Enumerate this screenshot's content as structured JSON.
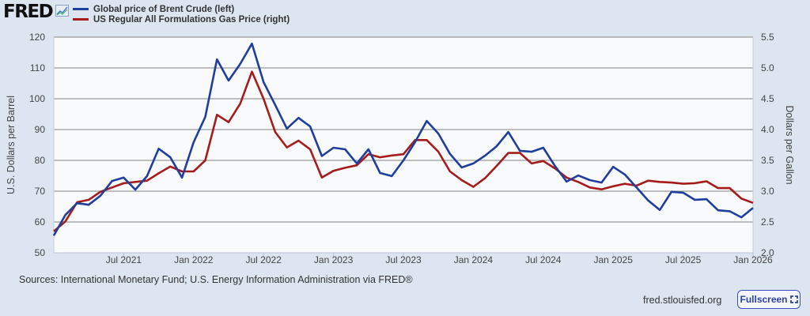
{
  "header": {
    "logo_text": "FRED",
    "logo_icon": "line-chart-icon"
  },
  "footer": {
    "sources": "Sources: International Monetary Fund; U.S. Energy Information Administration via FRED®",
    "site": "fred.stlouisfed.org",
    "fullscreen_label": "Fullscreen",
    "fullscreen_icon": "expand-icon"
  },
  "colors": {
    "brent": "#1f3e9e",
    "gas": "#a61b1b",
    "background": "#dce5f0",
    "plot_background": "#f8fafb",
    "grid": "#9a9a9a"
  },
  "chart_data": {
    "type": "line",
    "title": "",
    "xlabel": "",
    "ylabel": "U.S. Dollars per Barrel",
    "ylabel_right": "Dollars per Gallon",
    "ylim": [
      50,
      120
    ],
    "ylim_right": [
      2.0,
      5.5
    ],
    "yticks": [
      "50",
      "60",
      "70",
      "80",
      "90",
      "100",
      "110",
      "120"
    ],
    "yticks_right": [
      "2.0",
      "2.5",
      "3.0",
      "3.5",
      "4.0",
      "4.5",
      "5.0",
      "5.5"
    ],
    "xticks": [
      {
        "label": "Jul 2021",
        "index": 6
      },
      {
        "label": "Jan 2022",
        "index": 12
      },
      {
        "label": "Jul 2022",
        "index": 18
      },
      {
        "label": "Jan 2023",
        "index": 24
      },
      {
        "label": "Jul 2023",
        "index": 30
      },
      {
        "label": "Jan 2024",
        "index": 36
      },
      {
        "label": "Jul 2024",
        "index": 42
      },
      {
        "label": "Jan 2025",
        "index": 48
      },
      {
        "label": "Jul 2025",
        "index": 54
      },
      {
        "label": "Jan 2026",
        "index": 60
      }
    ],
    "x_start": "Jan 2021",
    "x_frequency": "monthly",
    "grid": true,
    "legend_position": "top-left",
    "series": [
      {
        "name": "Global price of Brent Crude (left)",
        "axis": "left",
        "color": "#1f3e9e",
        "values": [
          55.6,
          62.3,
          66.1,
          65.6,
          68.5,
          73.3,
          74.4,
          70.5,
          74.9,
          83.8,
          81.0,
          74.4,
          85.9,
          94.1,
          112.8,
          105.9,
          111.3,
          117.9,
          105.4,
          98.0,
          90.3,
          93.8,
          91.0,
          81.4,
          84.1,
          83.6,
          79.0,
          83.6,
          75.9,
          74.9,
          80.0,
          85.9,
          92.8,
          88.7,
          82.1,
          77.7,
          79.0,
          81.5,
          84.6,
          89.2,
          83.1,
          82.8,
          84.1,
          78.2,
          73.1,
          75.1,
          73.6,
          72.8,
          77.9,
          75.4,
          71.2,
          67.0,
          63.9,
          69.8,
          69.5,
          67.2,
          67.4,
          63.8,
          63.5,
          61.5,
          64.6
        ]
      },
      {
        "name": "US Regular All Formulations Gas Price (right)",
        "axis": "right",
        "color": "#a61b1b",
        "values": [
          2.35,
          2.51,
          2.82,
          2.86,
          2.99,
          3.06,
          3.13,
          3.15,
          3.17,
          3.29,
          3.4,
          3.32,
          3.32,
          3.5,
          4.24,
          4.12,
          4.42,
          4.94,
          4.5,
          3.96,
          3.71,
          3.82,
          3.68,
          3.22,
          3.33,
          3.38,
          3.42,
          3.6,
          3.55,
          3.58,
          3.6,
          3.83,
          3.83,
          3.64,
          3.32,
          3.18,
          3.07,
          3.21,
          3.41,
          3.62,
          3.62,
          3.45,
          3.49,
          3.37,
          3.22,
          3.15,
          3.06,
          3.03,
          3.08,
          3.12,
          3.09,
          3.17,
          3.15,
          3.14,
          3.12,
          3.13,
          3.16,
          3.05,
          3.05,
          2.88,
          2.81
        ]
      }
    ]
  }
}
